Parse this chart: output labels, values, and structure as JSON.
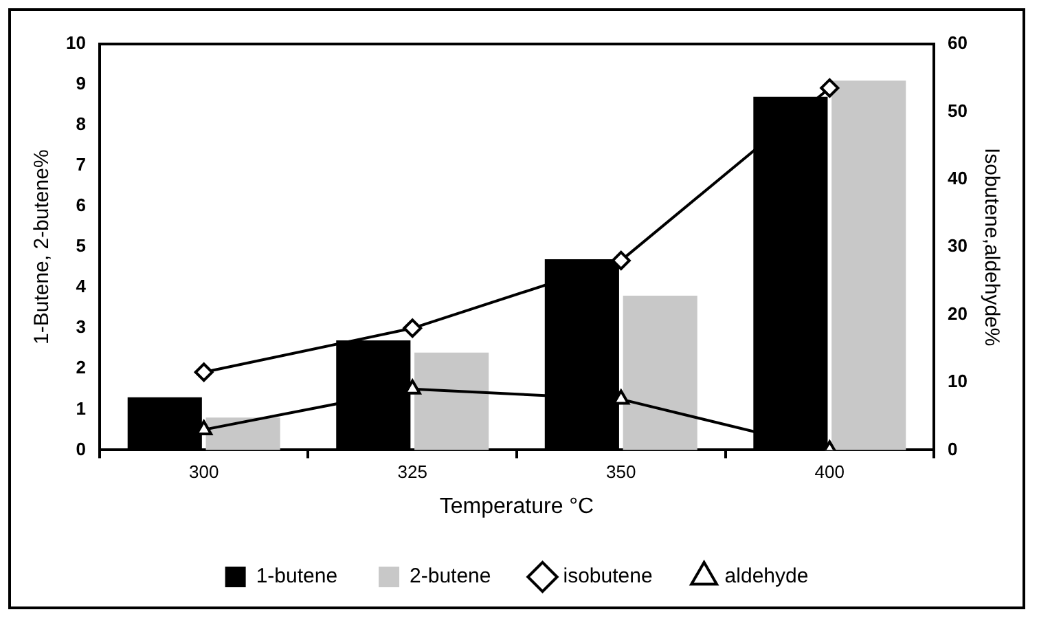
{
  "chart_data": {
    "type": "bar",
    "xlabel": "Temperature °C",
    "ylabel": "1-Butene, 2-butene%",
    "y2label": "Isobutene,aldehyde%",
    "categories": [
      "300",
      "325",
      "350",
      "400"
    ],
    "series": [
      {
        "name": "1-butene",
        "color": "#000000",
        "values": [
          1.3,
          2.7,
          4.7,
          8.7
        ]
      },
      {
        "name": "2-butene",
        "color": "#c8c8c8",
        "values": [
          0.8,
          2.4,
          3.8,
          9.1
        ]
      },
      {
        "name": "isobutene",
        "type": "line",
        "axis": "y2",
        "marker": "diamond",
        "color": "#000000",
        "values": [
          11.5,
          18,
          28,
          53.5
        ]
      },
      {
        "name": "aldehyde",
        "type": "line",
        "axis": "y2",
        "marker": "triangle",
        "color": "#000000",
        "values": [
          3,
          9,
          7.5,
          0
        ]
      }
    ],
    "ylim": [
      0,
      10
    ],
    "yticks": [
      0,
      1,
      2,
      3,
      4,
      5,
      6,
      7,
      8,
      9,
      10
    ],
    "y2lim": [
      0,
      60
    ],
    "y2ticks": [
      0,
      10,
      20,
      30,
      40,
      50,
      60
    ],
    "grid": false,
    "legend": "bottom"
  }
}
